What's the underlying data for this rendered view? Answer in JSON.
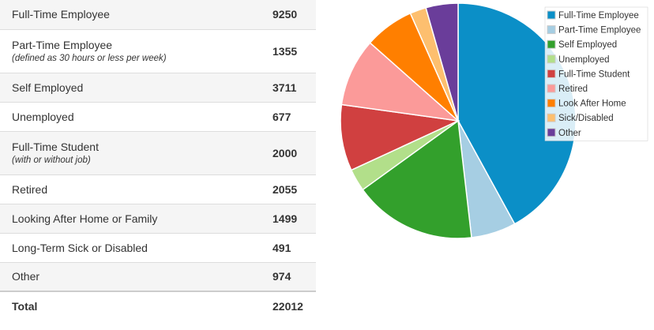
{
  "table": {
    "rows": [
      {
        "label": "Full-Time Employee",
        "note": "",
        "value": "9250"
      },
      {
        "label": "Part-Time Employee",
        "note": "(defined as 30 hours or less per week)",
        "value": "1355"
      },
      {
        "label": "Self Employed",
        "note": "",
        "value": "3711"
      },
      {
        "label": "Unemployed",
        "note": "",
        "value": "677"
      },
      {
        "label": "Full-Time Student",
        "note": "(with or without job)",
        "value": "2000"
      },
      {
        "label": "Retired",
        "note": "",
        "value": "2055"
      },
      {
        "label": "Looking After Home or Family",
        "note": "",
        "value": "1499"
      },
      {
        "label": "Long-Term Sick or Disabled",
        "note": "",
        "value": "491"
      },
      {
        "label": "Other",
        "note": "",
        "value": "974"
      }
    ],
    "total": {
      "label": "Total",
      "value": "22012"
    }
  },
  "chart_data": {
    "type": "pie",
    "title": "",
    "legend_position": "top-right",
    "slices": [
      {
        "label": "Full-Time Employee",
        "value": 9250,
        "color": "#0b8fc7"
      },
      {
        "label": "Part-Time Employee",
        "value": 1355,
        "color": "#a6cee3"
      },
      {
        "label": "Self Employed",
        "value": 3711,
        "color": "#33a02c"
      },
      {
        "label": "Unemployed",
        "value": 677,
        "color": "#b2df8a"
      },
      {
        "label": "Full-Time Student",
        "value": 2000,
        "color": "#d04040"
      },
      {
        "label": "Retired",
        "value": 2055,
        "color": "#fb9a99"
      },
      {
        "label": "Look After Home",
        "value": 1499,
        "color": "#ff7f00"
      },
      {
        "label": "Sick/Disabled",
        "value": 491,
        "color": "#fdbf6f"
      },
      {
        "label": "Other",
        "value": 974,
        "color": "#6a3d9a"
      }
    ]
  }
}
